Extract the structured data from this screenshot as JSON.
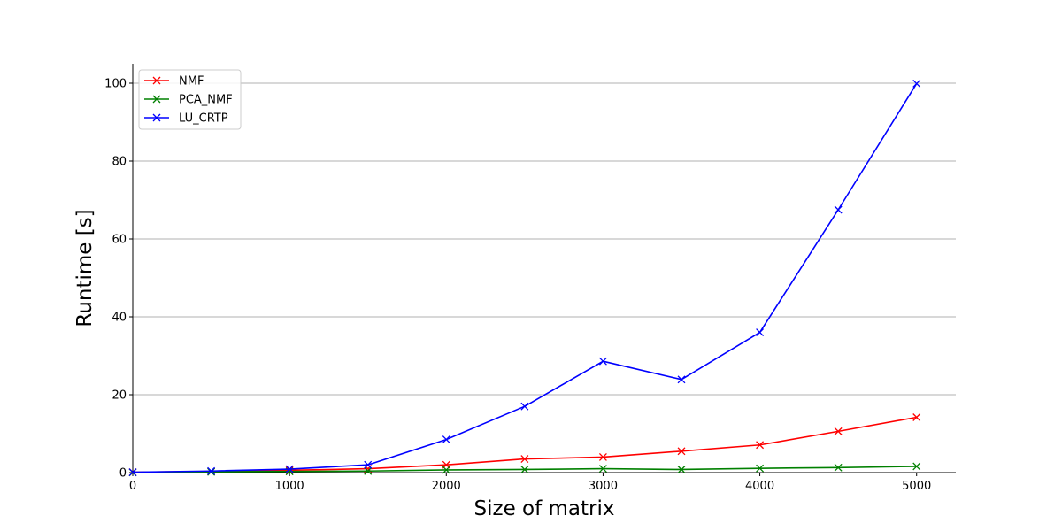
{
  "chart_data": {
    "type": "line",
    "title": "",
    "xlabel": "Size of matrix",
    "ylabel": "Runtime [s]",
    "xlim": [
      0,
      5250
    ],
    "ylim": [
      0,
      105
    ],
    "xticks": [
      0,
      1000,
      2000,
      3000,
      4000,
      5000
    ],
    "yticks": [
      0,
      20,
      40,
      60,
      80,
      100
    ],
    "grid": "horizontal",
    "legend": "top-left",
    "marker": "x",
    "x": [
      0,
      500,
      1000,
      1500,
      2000,
      2500,
      3000,
      3500,
      4000,
      4500,
      5000
    ],
    "series": [
      {
        "name": "NMF",
        "color": "#ff0000",
        "values": [
          0.1,
          0.3,
          0.6,
          1.0,
          2.0,
          3.5,
          4.0,
          5.5,
          7.1,
          10.6,
          14.2
        ]
      },
      {
        "name": "PCA_NMF",
        "color": "#008000",
        "values": [
          0.05,
          0.2,
          0.3,
          0.4,
          0.7,
          0.8,
          1.0,
          0.8,
          1.1,
          1.3,
          1.6
        ]
      },
      {
        "name": "LU_CRTP",
        "color": "#0000ff",
        "values": [
          0.1,
          0.4,
          0.9,
          2.0,
          8.5,
          17.0,
          28.6,
          23.9,
          36.0,
          67.5,
          99.9
        ]
      }
    ]
  }
}
